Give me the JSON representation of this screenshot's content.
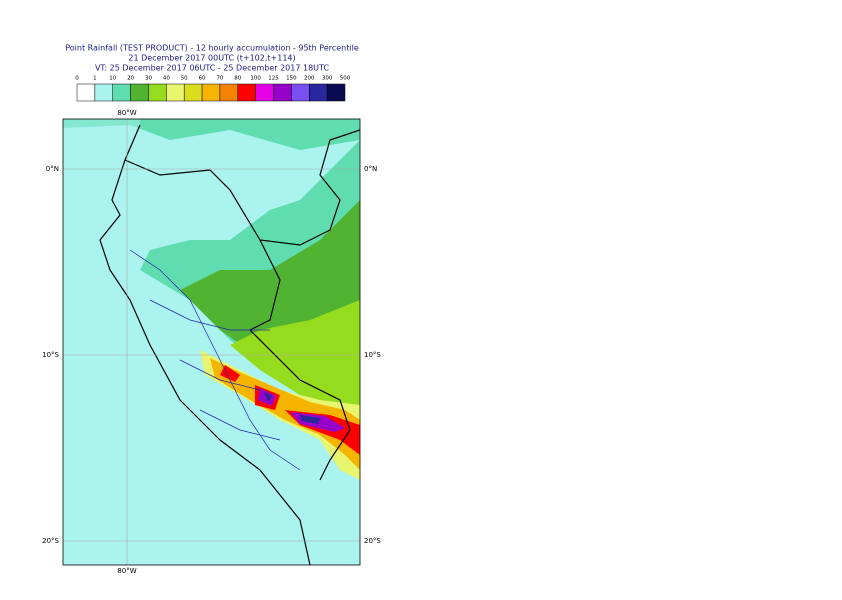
{
  "header": {
    "title": "Point Rainfall (TEST PRODUCT) - 12 hourly accumulation - 95th Percentile",
    "line2": "21 December 2017 00UTC (t+102,t+114)",
    "line3": "VT: 25 December 2017 06UTC - 25 December 2017 18UTC"
  },
  "legend": {
    "thresholds": [
      0,
      1,
      10,
      20,
      30,
      40,
      50,
      60,
      70,
      80,
      100,
      125,
      150,
      200,
      300,
      500
    ],
    "colors": [
      "#ffffff",
      "#aaf3ef",
      "#5fdcb0",
      "#50b432",
      "#96dc1e",
      "#e8f56e",
      "#dcdc1e",
      "#f5b400",
      "#f58200",
      "#ff0000",
      "#e600e6",
      "#9600c8",
      "#7850f0",
      "#28289c",
      "#0a0a50"
    ]
  },
  "map": {
    "lat_labels": [
      "0°N",
      "10°S",
      "20°S"
    ],
    "lon_label": "80°W"
  }
}
